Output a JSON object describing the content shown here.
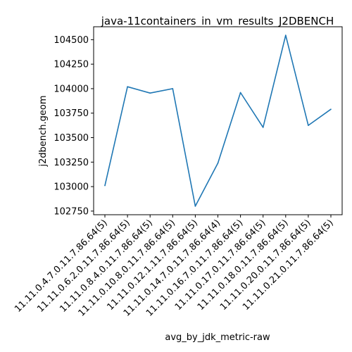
{
  "chart_data": {
    "type": "line",
    "title": "java-11containers_in_vm_results_J2DBENCH",
    "xlabel": "avg_by_jdk_metric-raw",
    "ylabel": "j2dbench.geom",
    "categories": [
      "11.11.0.4.7.0.11.7.86.64(5)",
      "11.11.0.6.2.0.11.7.86.64(5)",
      "11.11.0.8.4.0.11.7.86.64(5)",
      "11.11.0.10.8.0.11.7.86.64(5)",
      "11.11.0.12.1.11.7.86.64(5)",
      "11.11.0.14.7.0.11.7.86.64(4)",
      "11.11.0.16.7.0.11.7.86.64(5)",
      "11.11.0.17.0.11.7.86.64(5)",
      "11.11.0.18.0.11.7.86.64(5)",
      "11.11.0.20.0.11.7.86.64(5)",
      "11.11.0.21.0.11.7.86.64(5)"
    ],
    "series": [
      {
        "values": [
          103010,
          104020,
          103955,
          104000,
          102800,
          103240,
          103960,
          103605,
          104545,
          103625,
          103790
        ],
        "color": "#1f77b4"
      }
    ],
    "yticks": [
      102750,
      103000,
      103250,
      103500,
      103750,
      104000,
      104250,
      104500
    ],
    "ytick_labels": [
      "102750",
      "103000",
      "103250",
      "103500",
      "103750",
      "104000",
      "104250",
      "104500"
    ],
    "ylim": [
      102713,
      104632
    ],
    "grid": false,
    "legend": "none"
  }
}
